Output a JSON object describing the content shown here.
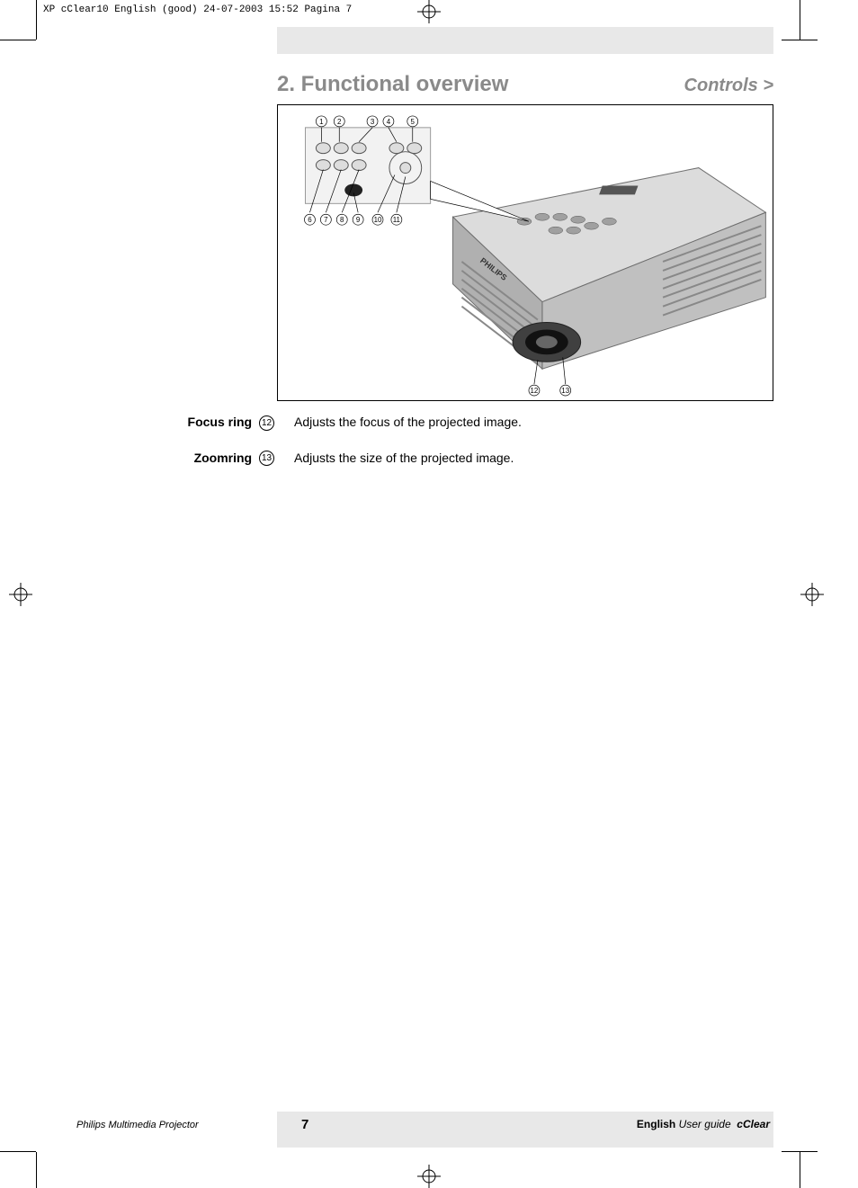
{
  "print_header": "XP cClear10 English (good)  24-07-2003  15:52  Pagina 7",
  "section": {
    "title": "2. Functional overview",
    "sub": "Controls >"
  },
  "figure": {
    "callouts_top": [
      "1",
      "2",
      "3",
      "4",
      "5"
    ],
    "callouts_bottom_row": [
      "6",
      "7",
      "8",
      "9",
      "10",
      "11"
    ],
    "callouts_lens": [
      "12",
      "13"
    ],
    "callout_fontsize": 9,
    "callout_circle_stroke": "#000000",
    "body_fill": "#d8d8d8",
    "body_stroke": "#6e6e6e",
    "panel_fill": "#f2f2f2",
    "shadow_fill": "#b8b8b8",
    "line_color": "#000000",
    "brand_front": "PHILIPS",
    "brand_top": "PHILIPS"
  },
  "entries": [
    {
      "label": "Focus ring",
      "num": "12",
      "desc": "Adjusts the focus of the projected image."
    },
    {
      "label": "Zoomring",
      "num": "13",
      "desc": "Adjusts the size of the projected image."
    }
  ],
  "footer": {
    "left": "Philips Multimedia Projector",
    "page": "7",
    "right_lang": "English",
    "right_ug": "User guide",
    "right_model": "cClear"
  },
  "colors": {
    "gray_bar": "#e8e8e8",
    "heading": "#8a8a8a",
    "text": "#000000"
  }
}
